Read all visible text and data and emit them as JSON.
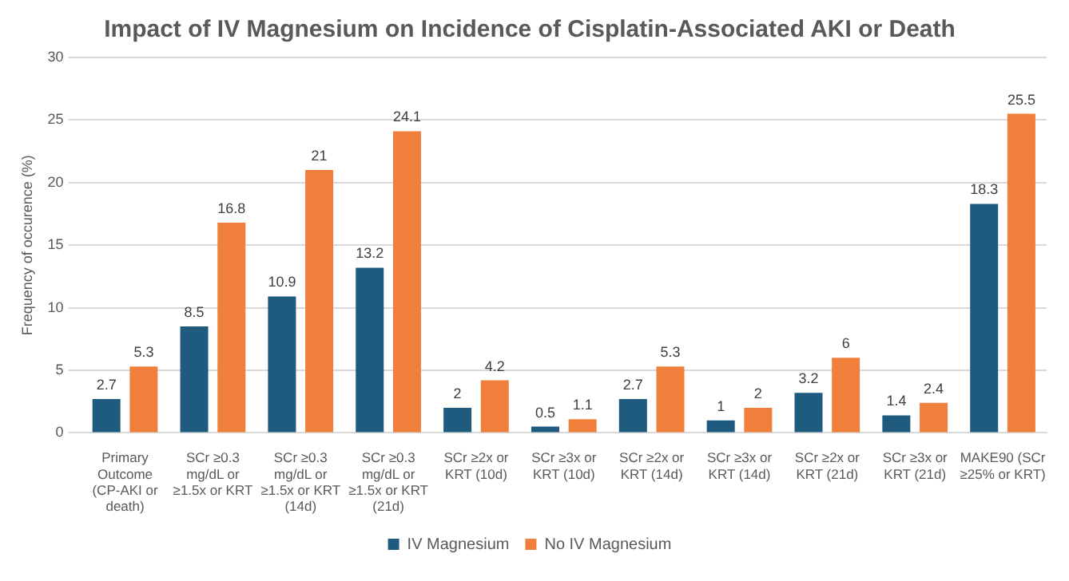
{
  "chart_data": {
    "type": "bar",
    "title": "Impact of IV Magnesium on Incidence of Cisplatin-Associated AKI or Death",
    "ylabel": "Frequency of occurence (%)",
    "categories": [
      "Primary Outcome (CP-AKI or death)",
      "SCr ≥0.3 mg/dL or ≥1.5x or KRT",
      "SCr ≥0.3 mg/dL or ≥1.5x or KRT (14d)",
      "SCr ≥0.3 mg/dL or ≥1.5x or KRT (21d)",
      "SCr ≥2x or KRT (10d)",
      "SCr ≥3x or KRT (10d)",
      "SCr ≥2x or KRT (14d)",
      "SCr ≥3x or KRT (14d)",
      "SCr ≥2x or KRT (21d)",
      "SCr ≥3x or KRT (21d)",
      "MAKE90 (SCr ≥25% or KRT)"
    ],
    "series": [
      {
        "name": "IV Magnesium",
        "color": "#1f5b7f",
        "values": [
          2.7,
          8.5,
          10.9,
          13.2,
          2,
          0.5,
          2.7,
          1,
          3.2,
          1.4,
          18.3
        ]
      },
      {
        "name": "No IV Magnesium",
        "color": "#f07f3c",
        "values": [
          5.3,
          16.8,
          21,
          24.1,
          4.2,
          1.1,
          5.3,
          2,
          6,
          2.4,
          25.5
        ]
      }
    ],
    "ylim": [
      0,
      30
    ],
    "yticks": [
      0,
      5,
      10,
      15,
      20,
      25,
      30
    ],
    "grid": "y",
    "legend": "bottom",
    "data_labels": true
  }
}
